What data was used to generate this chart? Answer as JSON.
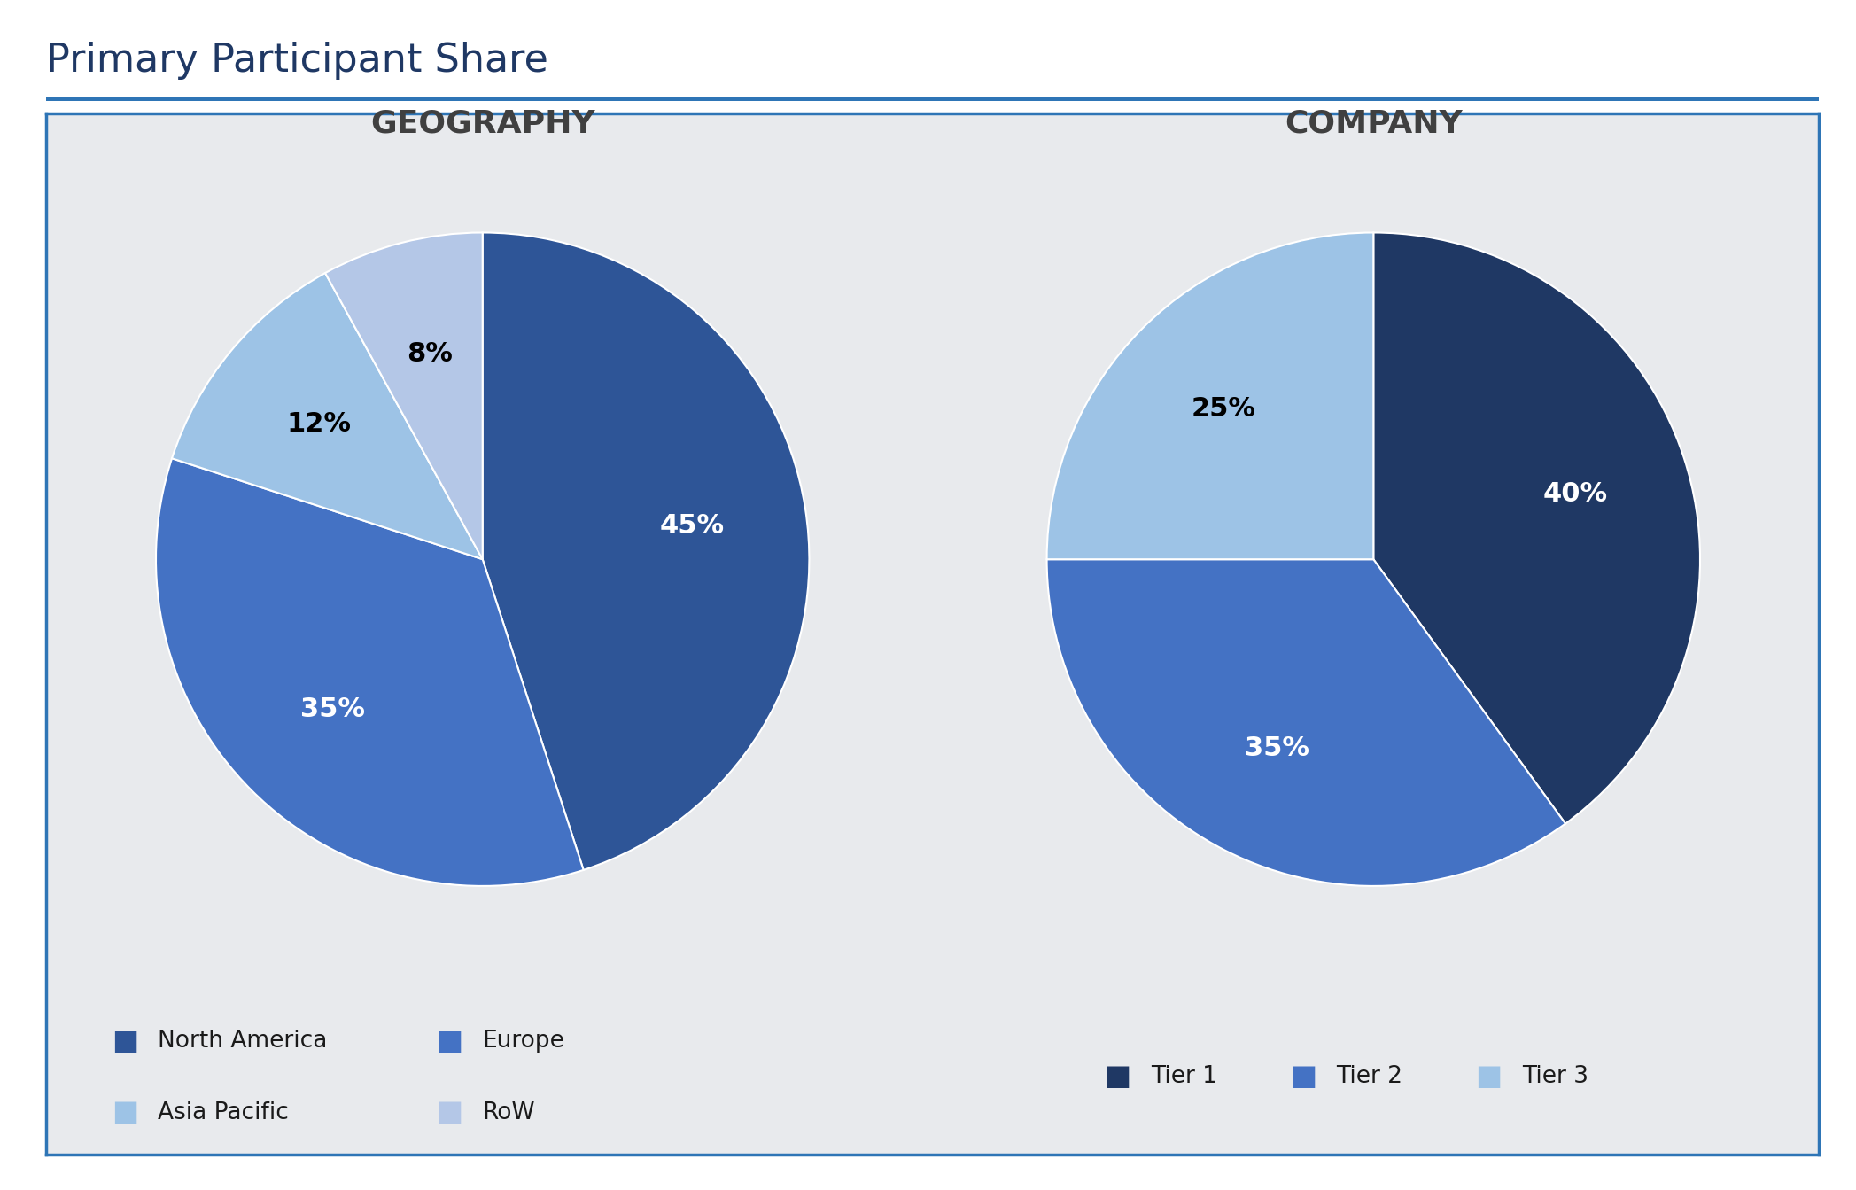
{
  "title": "Primary Participant Share",
  "title_color": "#1f3864",
  "title_fontsize": 32,
  "background_color": "#e8eaed",
  "outer_border_color": "#2e75b6",
  "page_background": "#ffffff",
  "geo_title": "GEOGRAPHY",
  "geo_values": [
    45,
    35,
    12,
    8
  ],
  "geo_labels": [
    "45%",
    "35%",
    "12%",
    "8%"
  ],
  "geo_label_colors": [
    "white",
    "white",
    "black",
    "black"
  ],
  "geo_colors": [
    "#2e5597",
    "#4472c4",
    "#9dc3e6",
    "#b4c7e7"
  ],
  "geo_legend_labels": [
    "North America",
    "Europe",
    "Asia Pacific",
    "RoW"
  ],
  "company_title": "COMPANY",
  "company_values": [
    40,
    35,
    25
  ],
  "company_labels": [
    "40%",
    "35%",
    "25%"
  ],
  "company_label_colors": [
    "white",
    "white",
    "black"
  ],
  "company_colors": [
    "#1f3864",
    "#4472c4",
    "#9dc3e6"
  ],
  "company_legend_labels": [
    "Tier 1",
    "Tier 2",
    "Tier 3"
  ],
  "geo_startangle": 90,
  "company_startangle": 90,
  "subtitle_fontsize": 26,
  "label_fontsize": 22,
  "legend_fontsize": 19
}
